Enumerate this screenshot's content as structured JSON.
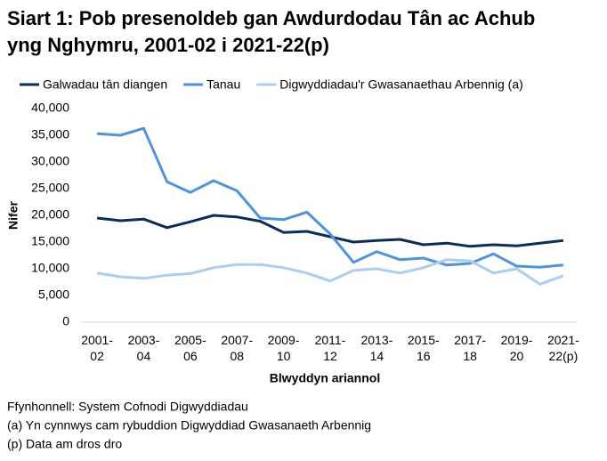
{
  "chart_data": {
    "type": "line",
    "title": "Siart 1: Pob presenoldeb gan Awdurdodau Tân ac Achub\nyng Nghymru, 2001-02 i 2021-22(p)",
    "categories": [
      "2001-\n02",
      null,
      "2003-\n04",
      null,
      "2005-\n06",
      null,
      "2007-\n08",
      null,
      "2009-\n10",
      null,
      "2011-\n12",
      null,
      "2013-\n14",
      null,
      "2015-\n16",
      null,
      "2017-\n18",
      null,
      "2019-\n20",
      null,
      "2021-\n22(p)"
    ],
    "series": [
      {
        "name": "Galwadau tân diangen",
        "color": "#0b2d5b",
        "values": [
          19500,
          19000,
          19300,
          17700,
          18800,
          20000,
          19700,
          18900,
          16800,
          17000,
          16000,
          15000,
          15300,
          15500,
          14500,
          14800,
          14200,
          14500,
          14300,
          14800,
          15300
        ]
      },
      {
        "name": "Tanau",
        "color": "#4f93e0",
        "values": [
          35300,
          35000,
          36300,
          26300,
          24300,
          26500,
          24600,
          19500,
          19200,
          20600,
          16500,
          11200,
          13200,
          11700,
          12000,
          10700,
          11000,
          12800,
          10500,
          10300,
          10700
        ]
      },
      {
        "name": "Digwyddiadau'r Gwasanaethau Arbennig (a)",
        "color": "#a9cdf3",
        "values": [
          9200,
          8500,
          8200,
          8800,
          9100,
          10200,
          10800,
          10800,
          10200,
          9200,
          7700,
          9700,
          10000,
          9200,
          10200,
          11700,
          11500,
          9200,
          10000,
          7100,
          8700
        ]
      }
    ],
    "ylim": [
      0,
      40000
    ],
    "yticks": [
      0,
      {
        "value": 5000,
        "label": "5,000"
      },
      {
        "value": 10000,
        "label": "10,000"
      },
      {
        "value": 15000,
        "label": "15,000"
      },
      {
        "value": 20000,
        "label": "20,000"
      },
      {
        "value": 25000,
        "label": "25,000"
      },
      {
        "value": 30000,
        "label": "30,000"
      },
      {
        "value": 35000,
        "label": "35,000"
      },
      {
        "value": 40000,
        "label": "40,000"
      }
    ],
    "ylabel": "Nifer",
    "xlabel": "Blwyddyn ariannol",
    "grid": false,
    "legend": "top",
    "notes": [
      "Ffynhonnell: System Cofnodi Digwyddiadau",
      "(a) Yn cynnwys cam rybuddion Digwyddiad Gwasanaeth Arbennig",
      "(p) Data am dros dro"
    ]
  }
}
